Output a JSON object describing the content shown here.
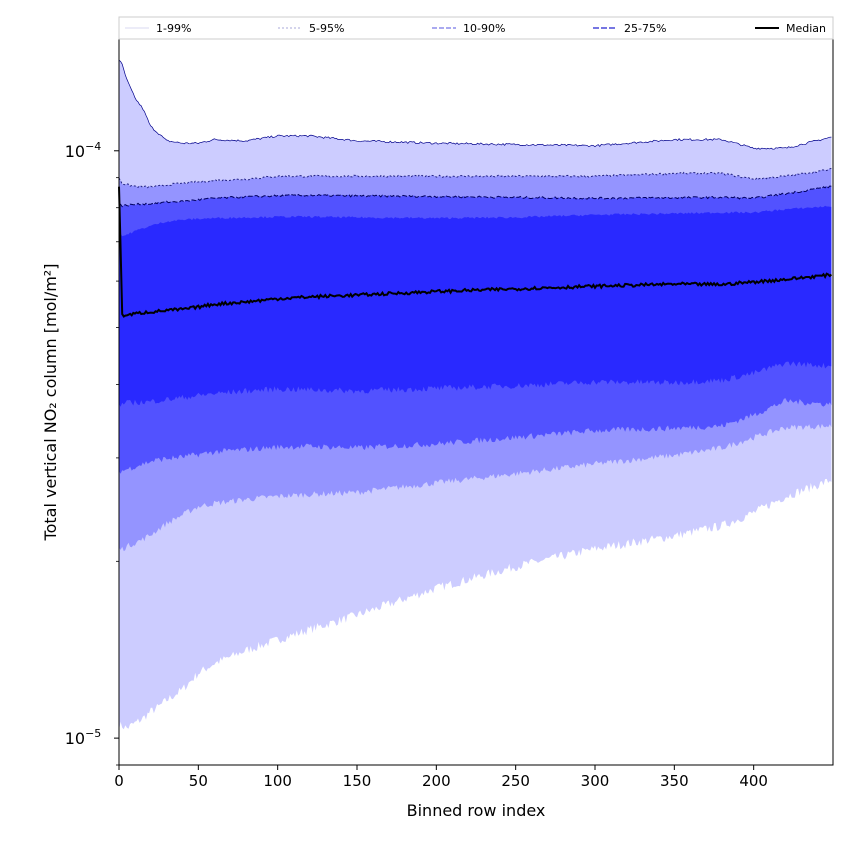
{
  "chart_data": {
    "type": "area",
    "xlabel": "Binned row index",
    "ylabel": "Total vertical NO₂ column [mol/m²]",
    "xlim": [
      0,
      450
    ],
    "ylim": [
      9e-06,
      0.000155
    ],
    "yscale": "log",
    "grid": false,
    "legend_position": "top",
    "x_ticks": [
      0,
      50,
      100,
      150,
      200,
      250,
      300,
      350,
      400
    ],
    "y_ticks": [
      {
        "value": 0.0001,
        "base": "10",
        "exp": "−4"
      },
      {
        "value": 1e-05,
        "base": "10",
        "exp": "−5"
      }
    ],
    "legend": [
      "1-99%",
      "5-95%",
      "10-90%",
      "25-75%",
      "Median"
    ],
    "colors": {
      "band_1_99": "#ccccff",
      "band_5_95": "#9494ff",
      "band_10_90": "#5252ff",
      "band_25_75": "#2929ff",
      "median": "#000000",
      "edge_1_99": "#00008b",
      "edge_5_95": "#202080",
      "edge_10_90": "#000060"
    },
    "x": [
      0,
      2,
      5,
      10,
      15,
      20,
      25,
      30,
      40,
      50,
      60,
      80,
      100,
      120,
      150,
      200,
      250,
      300,
      350,
      380,
      400,
      420,
      449
    ],
    "series": [
      {
        "name": "1-99%",
        "kind": "band",
        "lower": [
          1.05e-05,
          1.05e-05,
          1.04e-05,
          1.06e-05,
          1.08e-05,
          1.11e-05,
          1.13e-05,
          1.16e-05,
          1.21e-05,
          1.29e-05,
          1.34e-05,
          1.41e-05,
          1.47e-05,
          1.53e-05,
          1.62e-05,
          1.8e-05,
          1.96e-05,
          2.1e-05,
          2.21e-05,
          2.3e-05,
          2.42e-05,
          2.58e-05,
          2.75e-05
        ],
        "upper": [
          0.000143,
          0.00014,
          0.000132,
          0.000123,
          0.000118,
          0.00011,
          0.000107,
          0.000104,
          0.000103,
          0.000103,
          0.0001045,
          0.000104,
          0.000106,
          0.000106,
          0.000104,
          0.000103,
          0.0001025,
          0.000102,
          0.0001045,
          0.0001045,
          0.000101,
          0.000101,
          0.0001055
        ]
      },
      {
        "name": "5-95%",
        "kind": "band",
        "lower": [
          2.1e-05,
          2.1e-05,
          2.12e-05,
          2.15e-05,
          2.18e-05,
          2.22e-05,
          2.27e-05,
          2.32e-05,
          2.4e-05,
          2.48e-05,
          2.51e-05,
          2.55e-05,
          2.58e-05,
          2.6e-05,
          2.62e-05,
          2.72e-05,
          2.82e-05,
          2.93e-05,
          3.03e-05,
          3.12e-05,
          3.25e-05,
          3.38e-05,
          3.4e-05
        ],
        "upper": [
          9e-05,
          8.8e-05,
          8.75e-05,
          8.7e-05,
          8.68e-05,
          8.68e-05,
          8.7e-05,
          8.75e-05,
          8.8e-05,
          8.85e-05,
          8.9e-05,
          8.95e-05,
          9.05e-05,
          9.05e-05,
          9.05e-05,
          9.05e-05,
          9.05e-05,
          9.05e-05,
          9.15e-05,
          9.15e-05,
          8.95e-05,
          9.05e-05,
          9.3e-05
        ]
      },
      {
        "name": "10-90%",
        "kind": "band",
        "lower": [
          2.85e-05,
          2.85e-05,
          2.87e-05,
          2.9e-05,
          2.93e-05,
          2.96e-05,
          2.98e-05,
          2.99e-05,
          3.01e-05,
          3.04e-05,
          3.07e-05,
          3.1e-05,
          3.13e-05,
          3.14e-05,
          3.12e-05,
          3.17e-05,
          3.25e-05,
          3.34e-05,
          3.37e-05,
          3.4e-05,
          3.55e-05,
          3.75e-05,
          3.7e-05
        ],
        "upper": [
          8.15e-05,
          8.05e-05,
          8.08e-05,
          8.1e-05,
          8.12e-05,
          8.12e-05,
          8.15e-05,
          8.18e-05,
          8.2e-05,
          8.25e-05,
          8.3e-05,
          8.35e-05,
          8.38e-05,
          8.4e-05,
          8.38e-05,
          8.36e-05,
          8.33e-05,
          8.3e-05,
          8.32e-05,
          8.33e-05,
          8.3e-05,
          8.45e-05,
          8.7e-05
        ]
      },
      {
        "name": "25-75%",
        "kind": "band",
        "lower": [
          3.7e-05,
          3.7e-05,
          3.72e-05,
          3.73e-05,
          3.73e-05,
          3.74e-05,
          3.76e-05,
          3.77e-05,
          3.8e-05,
          3.83e-05,
          3.86e-05,
          3.9e-05,
          3.93e-05,
          3.92e-05,
          3.9e-05,
          3.94e-05,
          3.98e-05,
          4.04e-05,
          4.03e-05,
          4.07e-05,
          4.18e-05,
          4.35e-05,
          4.3e-05
        ],
        "upper": [
          7.3e-05,
          7.15e-05,
          7.2e-05,
          7.3e-05,
          7.38e-05,
          7.45e-05,
          7.52e-05,
          7.58e-05,
          7.63e-05,
          7.66e-05,
          7.68e-05,
          7.7e-05,
          7.72e-05,
          7.72e-05,
          7.7e-05,
          7.68e-05,
          7.7e-05,
          7.78e-05,
          7.82e-05,
          7.85e-05,
          7.85e-05,
          7.95e-05,
          8.05e-05
        ]
      },
      {
        "name": "Median",
        "kind": "line",
        "values": [
          8.7e-05,
          5.25e-05,
          5.25e-05,
          5.28e-05,
          5.3e-05,
          5.32e-05,
          5.33e-05,
          5.35e-05,
          5.37e-05,
          5.42e-05,
          5.48e-05,
          5.53e-05,
          5.6e-05,
          5.64e-05,
          5.68e-05,
          5.76e-05,
          5.82e-05,
          5.88e-05,
          5.93e-05,
          5.92e-05,
          5.98e-05,
          6.04e-05,
          6.15e-05
        ]
      }
    ]
  }
}
